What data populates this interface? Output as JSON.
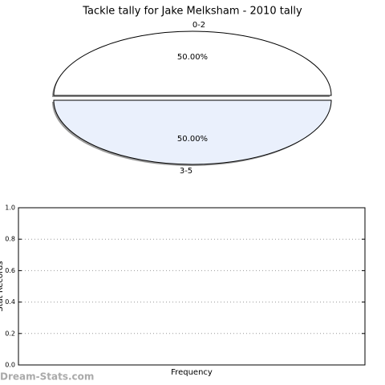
{
  "watermark": "Dream-Stats.com",
  "chart_data": [
    {
      "type": "pie",
      "title": "Tackle tally for Jake Melksham - 2010 tally",
      "categories": [
        "0-2",
        "3-5"
      ],
      "values": [
        50,
        50
      ],
      "value_labels": [
        "50.00%",
        "50.00%"
      ],
      "colors": [
        "#ffffff",
        "#eaf0fc"
      ],
      "shadow": true,
      "explode": true
    },
    {
      "type": "bar",
      "xlabel": "Frequency",
      "ylabel": "Stat Records",
      "categories": [],
      "values": [],
      "color": "#4472c4",
      "ylim": [
        0,
        1
      ],
      "yticks": [
        {
          "value": 0,
          "label": "0.0"
        },
        0.2,
        0.4,
        0.6,
        0.8,
        {
          "value": 1,
          "label": "1.0"
        }
      ],
      "grid": true
    }
  ]
}
